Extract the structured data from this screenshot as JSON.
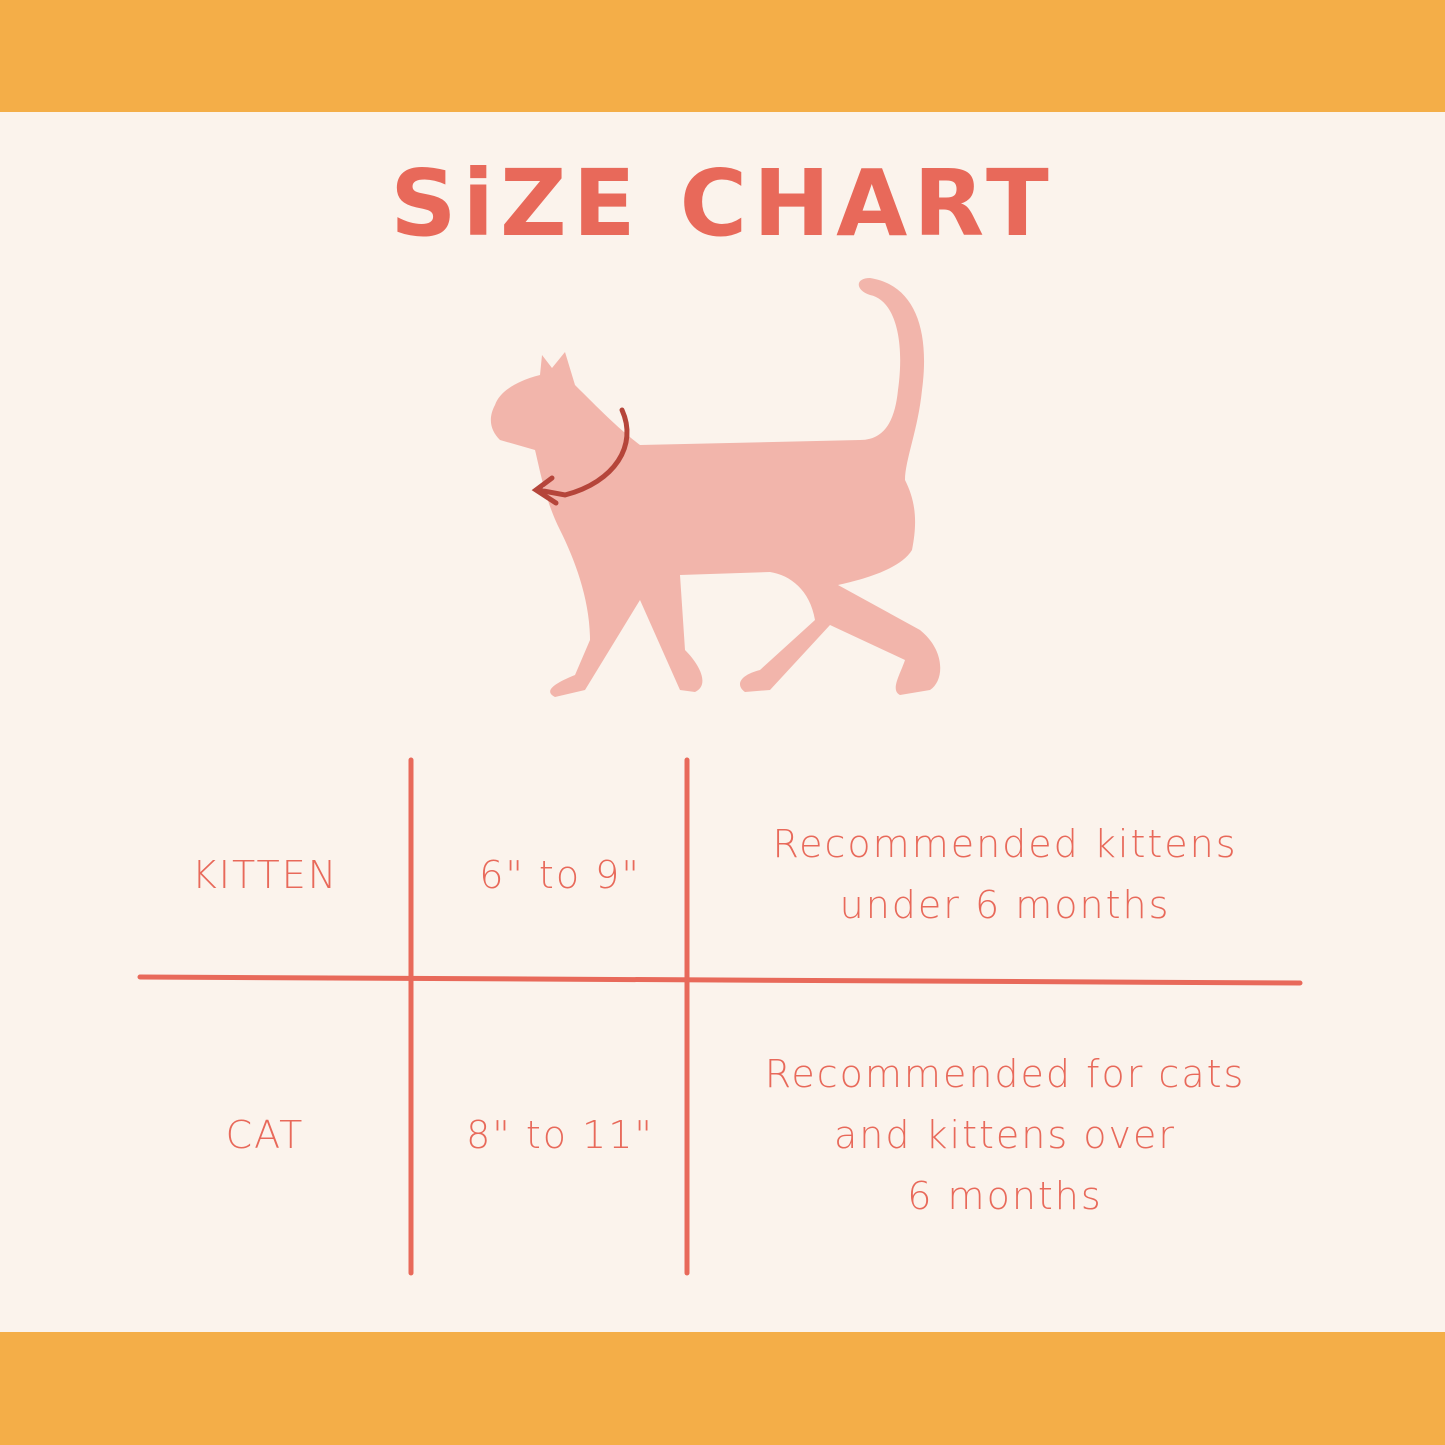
{
  "title": "SiZE CHART",
  "colors": {
    "band": "#F4AE48",
    "background": "#FBF3EC",
    "accent": "#E8695A",
    "cat": "#F2B5AB",
    "collar": "#B5453A"
  },
  "illustration": {
    "icon": "cat-with-collar-arrow"
  },
  "table": {
    "rows": [
      {
        "size": "KITTEN",
        "range": "6\" to 9\"",
        "note_lines": [
          "Recommended kittens",
          "under 6 months"
        ]
      },
      {
        "size": "CAT",
        "range": "8\" to 11\"",
        "note_lines": [
          "Recommended for cats",
          "and kittens over",
          "6 months"
        ]
      }
    ]
  }
}
